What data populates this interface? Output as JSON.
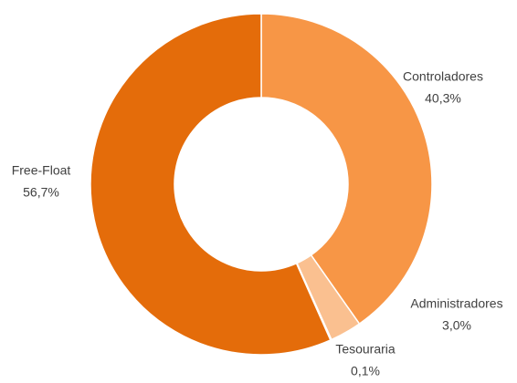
{
  "chart_data": {
    "type": "donut",
    "categories": [
      "Controladores",
      "Administradores",
      "Tesouraria",
      "Free-Float"
    ],
    "values": [
      40.3,
      3.0,
      0.1,
      56.7
    ],
    "value_labels": [
      "40,3%",
      "3,0%",
      "0,1%",
      "56,7%"
    ],
    "colors": [
      "#f79646",
      "#fac090",
      "#e36c09",
      "#e46c0a"
    ]
  }
}
